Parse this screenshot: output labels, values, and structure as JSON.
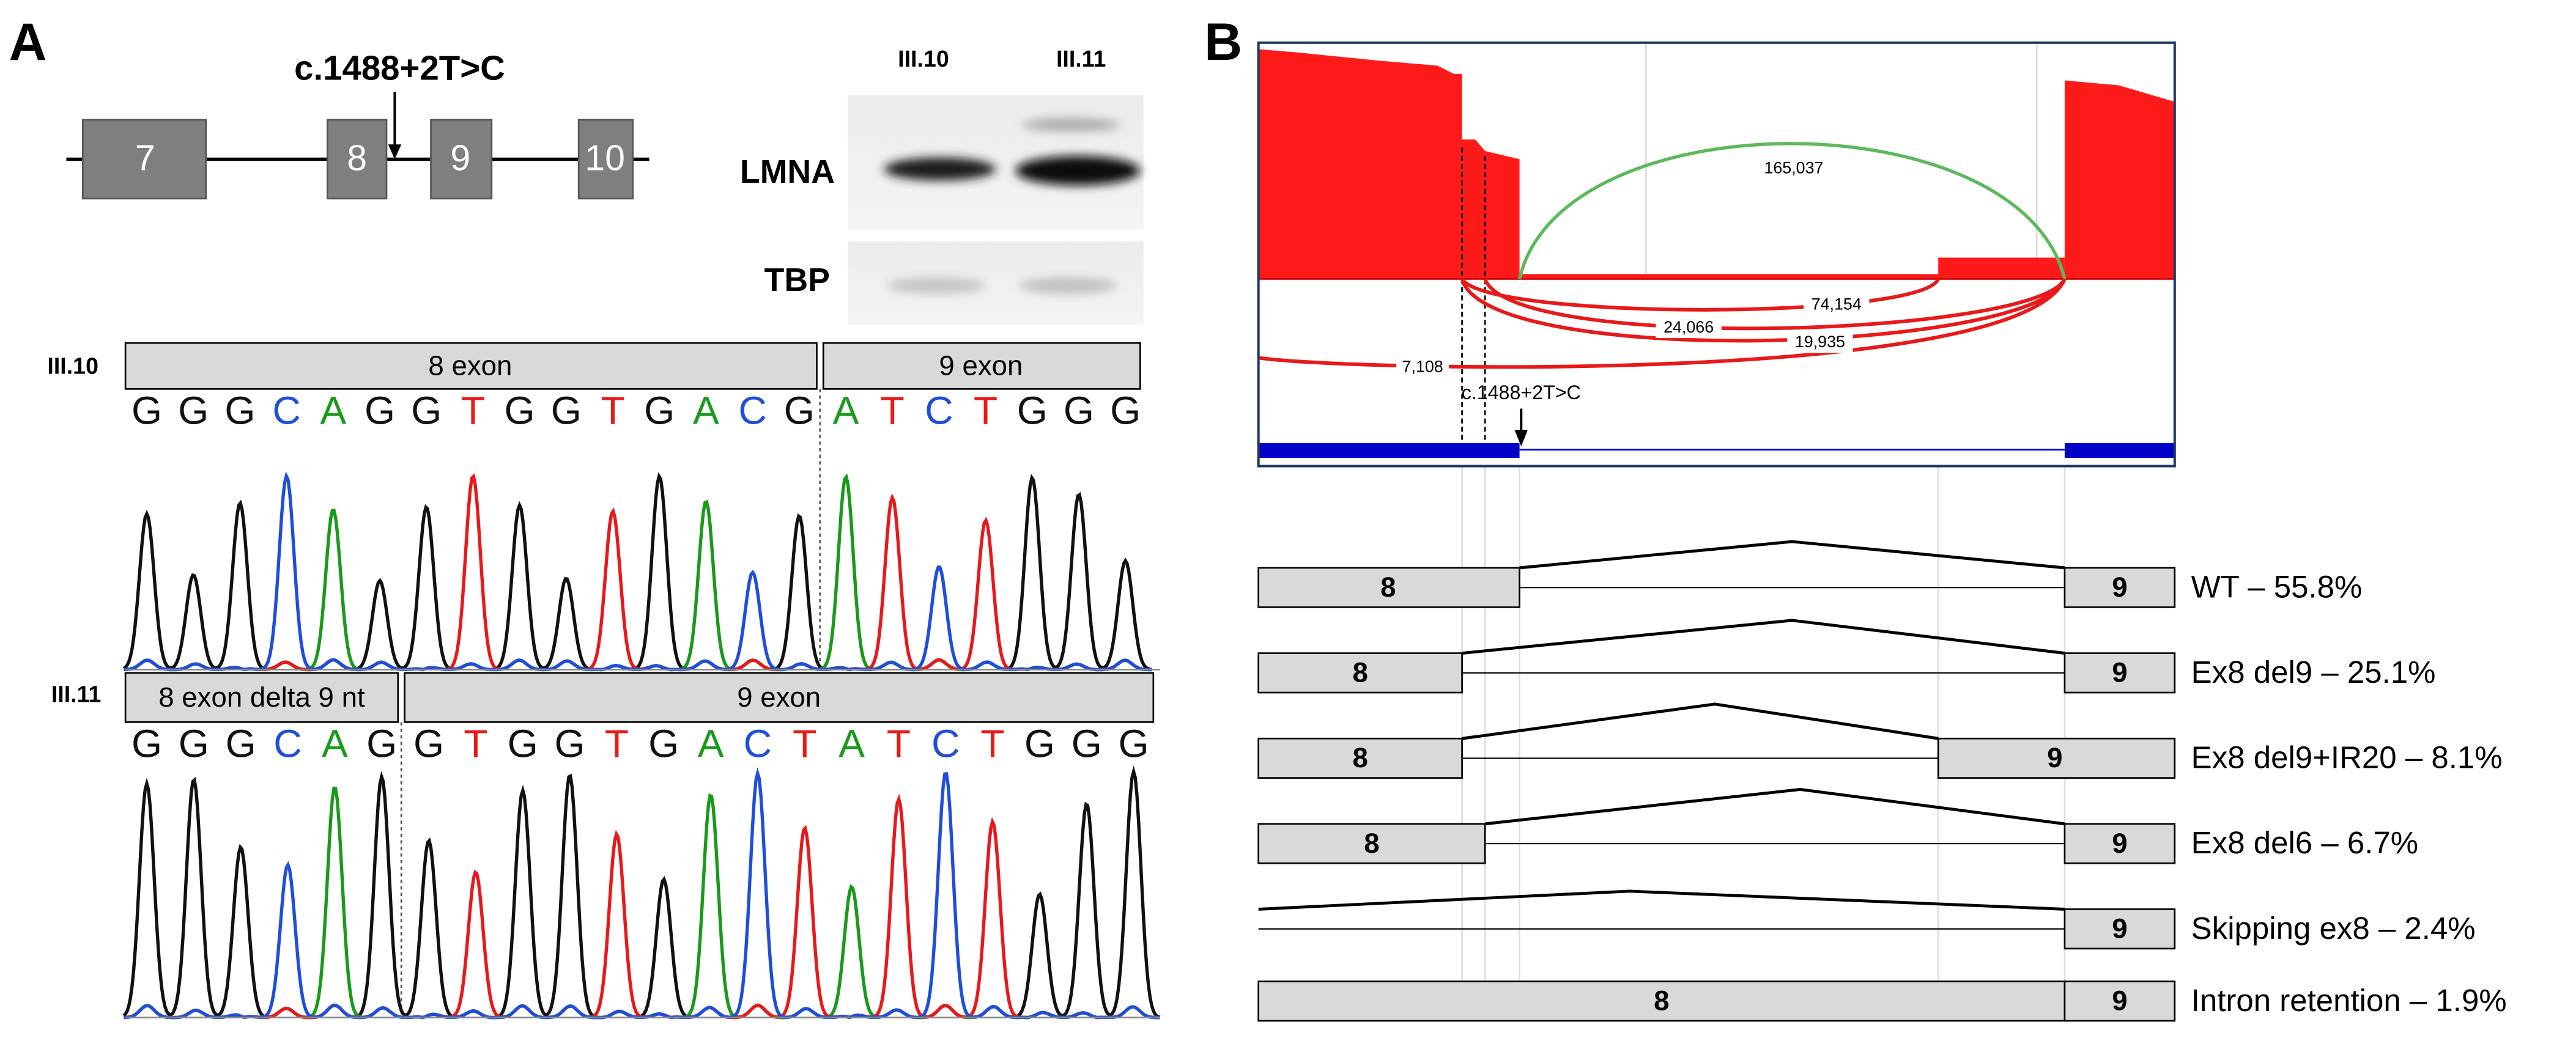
{
  "panel_a": {
    "label": "A",
    "mutation": "c.1488+2T>C",
    "exons": [
      "7",
      "8",
      "9",
      "10"
    ],
    "blot": {
      "lanes": [
        "III.10",
        "III.11"
      ],
      "bands": [
        "LMNA",
        "TBP"
      ]
    },
    "traces": [
      {
        "sample": "III.10",
        "segments": [
          "8 exon",
          "9 exon"
        ],
        "bases": [
          "G",
          "G",
          "G",
          "C",
          "A",
          "G",
          "G",
          "T",
          "G",
          "G",
          "T",
          "G",
          "A",
          "C",
          "G",
          "A",
          "T",
          "C",
          "T",
          "G",
          "G",
          "G"
        ]
      },
      {
        "sample": "III.11",
        "segments": [
          "8 exon delta 9 nt",
          "9 exon"
        ],
        "bases": [
          "G",
          "G",
          "G",
          "C",
          "A",
          "G",
          "G",
          "T",
          "G",
          "G",
          "T",
          "G",
          "A",
          "C",
          "T",
          "A",
          "T",
          "C",
          "T",
          "G",
          "G",
          "G"
        ]
      }
    ]
  },
  "panel_b": {
    "label": "B",
    "mutation": "c.1488+2T>C",
    "junctions": [
      "165,037",
      "74,154",
      "24,066",
      "19,935",
      "7,108"
    ],
    "isoforms": [
      {
        "exons": [
          "8",
          "9"
        ],
        "label": "WT – 55.8%"
      },
      {
        "exons": [
          "8",
          "9"
        ],
        "label": "Ex8 del9 – 25.1%"
      },
      {
        "exons": [
          "8",
          "9"
        ],
        "label": "Ex8 del9+IR20 – 8.1%"
      },
      {
        "exons": [
          "8",
          "9"
        ],
        "label": "Ex8 del6 – 6.7%"
      },
      {
        "exons": [
          "9"
        ],
        "label": "Skipping ex8 – 2.4%"
      },
      {
        "exons": [
          "8",
          "9"
        ],
        "label": "Intron retention – 1.9%"
      }
    ]
  }
}
